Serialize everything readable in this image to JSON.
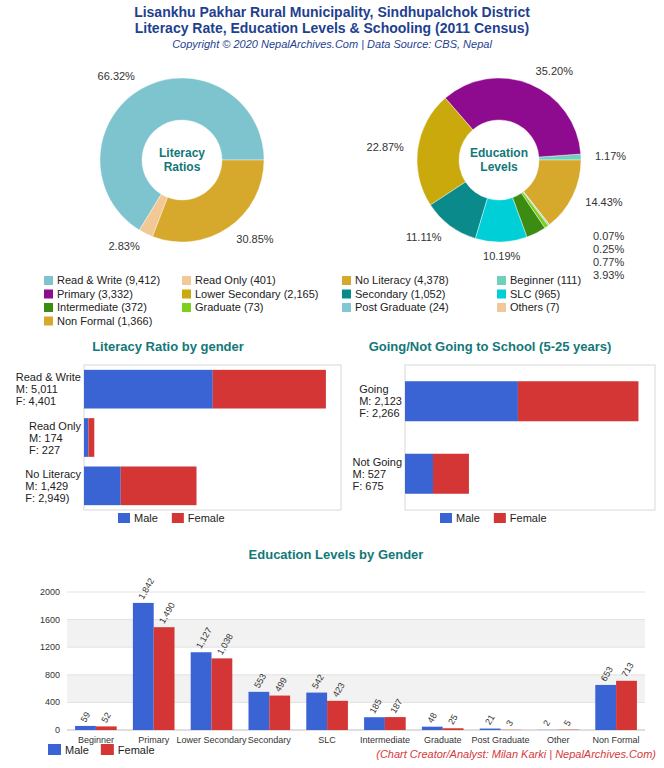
{
  "header": {
    "title": [
      "Lisankhu Pakhar Rural Municipality, Sindhupalchok District",
      "Literacy Rate, Education Levels & Schooling (2011 Census)"
    ],
    "subtitle": "Copyright © 2020 NepalArchives.Com | Data Source: CBS, Nepal"
  },
  "chart_data": [
    {
      "type": "pie",
      "title": "Literacy Ratios",
      "categories": [
        "Read & Write (9,412)",
        "Read Only (401)",
        "No Literacy (4,378)"
      ],
      "values": [
        66.32,
        2.83,
        30.85
      ],
      "value_labels": [
        "66.32%",
        "2.83%",
        "30.85%"
      ],
      "colors": [
        "#7ec4cf",
        "#f2c894",
        "#d6a82c"
      ],
      "data_labels": true,
      "legend": "bottom"
    },
    {
      "type": "pie",
      "title": "Education Levels",
      "categories": [
        "Beginner (111)",
        "Primary (3,332)",
        "Lower Secondary (2,165)",
        "Secondary (1,052)",
        "SLC (965)",
        "Intermediate (372)",
        "Graduate (73)",
        "Post Graduate (24)",
        "Others (7)",
        "Non Formal (1,366)"
      ],
      "values": [
        1.17,
        35.2,
        22.87,
        11.11,
        10.19,
        3.93,
        0.77,
        0.25,
        0.07,
        14.43
      ],
      "value_labels": [
        "1.17%",
        "35.20%",
        "22.87%",
        "11.11%",
        "10.19%",
        "3.93%",
        "0.77%",
        "0.25%",
        "0.07%",
        "14.43%"
      ],
      "colors": [
        "#6fd1b9",
        "#8e0a8e",
        "#c9a90c",
        "#0a8a8a",
        "#00cfd8",
        "#3c8c14",
        "#7cd01c",
        "#80c8d4",
        "#f0c89a",
        "#d6a82c"
      ],
      "data_labels": true,
      "legend": "bottom"
    },
    {
      "type": "bar",
      "orientation": "horizontal",
      "stacked": true,
      "title": "Literacy Ratio by gender",
      "categories": [
        "Read & Write",
        "Read Only",
        "No Literacy"
      ],
      "series": [
        {
          "name": "Male",
          "color": "#3a63d4",
          "values": [
            5011,
            174,
            1429
          ],
          "value_labels": [
            "M: 5,011",
            "M: 174",
            "M: 1,429"
          ]
        },
        {
          "name": "Female",
          "color": "#d43535",
          "values": [
            4401,
            227,
            2949
          ],
          "value_labels": [
            "F: 4,401",
            "F: 227",
            "F: 2,949)"
          ]
        }
      ],
      "xlim": [
        0,
        10000
      ],
      "tick_labels": false,
      "data_labels": true,
      "legend": "bottom"
    },
    {
      "type": "bar",
      "orientation": "horizontal",
      "stacked": true,
      "title": "Going/Not Going to School (5-25 years)",
      "categories": [
        "Going",
        "Not Going"
      ],
      "series": [
        {
          "name": "Male",
          "color": "#3a63d4",
          "values": [
            2123,
            527
          ],
          "value_labels": [
            "M: 2,123",
            "M: 527"
          ]
        },
        {
          "name": "Female",
          "color": "#d43535",
          "values": [
            2266,
            675
          ],
          "value_labels": [
            "F: 2,266",
            "F: 675"
          ]
        }
      ],
      "xlim": [
        0,
        4700
      ],
      "tick_labels": false,
      "data_labels": true,
      "legend": "bottom"
    },
    {
      "type": "bar",
      "title": "Education Levels by Gender",
      "categories": [
        "Beginner",
        "Primary",
        "Lower Secondary",
        "Secondary",
        "SLC",
        "Intermediate",
        "Graduate",
        "Post Graduate",
        "Other",
        "Non Formal"
      ],
      "series": [
        {
          "name": "Male",
          "color": "#3a63d4",
          "values": [
            59,
            1842,
            1127,
            553,
            542,
            185,
            48,
            21,
            2,
            653
          ],
          "value_labels": [
            "59",
            "1,842",
            "1,127",
            "553",
            "542",
            "185",
            "48",
            "21",
            "2",
            "653"
          ]
        },
        {
          "name": "Female",
          "color": "#d43535",
          "values": [
            52,
            1490,
            1038,
            499,
            423,
            187,
            25,
            3,
            5,
            713
          ],
          "value_labels": [
            "52",
            "1,490",
            "1,038",
            "499",
            "423",
            "187",
            "25",
            "3",
            "5",
            "713"
          ]
        }
      ],
      "ylim": [
        0,
        2000
      ],
      "yticks": [
        0,
        400,
        800,
        1200,
        1600,
        2000
      ],
      "grid": true,
      "data_labels": true,
      "legend": "bottom-left"
    }
  ],
  "footer": "(Chart Creator/Analyst: Milan Karki | NepalArchives.Com)"
}
